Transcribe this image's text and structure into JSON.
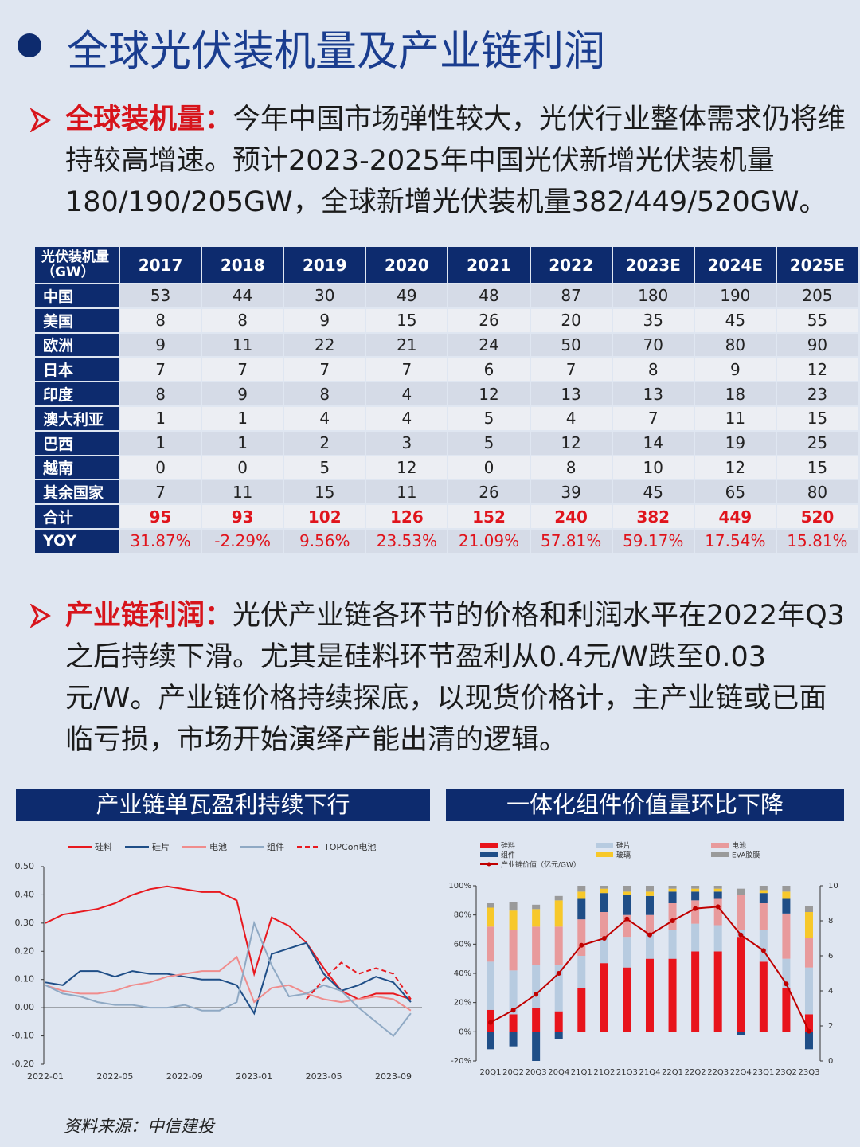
{
  "title": "全球光伏装机量及产业链利润",
  "sections": [
    {
      "label": "全球装机量：",
      "text": "今年中国市场弹性较大，光伏行业整体需求仍将维持较高增速。预计2023-2025年中国光伏新增光伏装机量180/190/205GW，全球新增光伏装机量382/449/520GW。"
    },
    {
      "label": "产业链利润：",
      "text": "光伏产业链各环节的价格和利润水平在2022年Q3之后持续下滑。尤其是硅料环节盈利从0.4元/W跌至0.03元/W。产业链价格持续探底，以现货价格计，主产业链或已面临亏损，市场开始演绎产能出清的逻辑。"
    }
  ],
  "table": {
    "header": [
      "光伏装机量（GW）",
      "2017",
      "2018",
      "2019",
      "2020",
      "2021",
      "2022",
      "2023E",
      "2024E",
      "2025E"
    ],
    "rows": [
      [
        "中国",
        53,
        44,
        30,
        49,
        48,
        87,
        180,
        190,
        205
      ],
      [
        "美国",
        8,
        8,
        9,
        15,
        26,
        20,
        35,
        45,
        55
      ],
      [
        "欧洲",
        9,
        11,
        22,
        21,
        24,
        50,
        70,
        80,
        90
      ],
      [
        "日本",
        7,
        7,
        7,
        7,
        6,
        7,
        8,
        9,
        12
      ],
      [
        "印度",
        8,
        9,
        8,
        4,
        12,
        13,
        13,
        18,
        23
      ],
      [
        "澳大利亚",
        1,
        1,
        4,
        4,
        5,
        4,
        7,
        11,
        15
      ],
      [
        "巴西",
        1,
        1,
        2,
        3,
        5,
        12,
        14,
        19,
        25
      ],
      [
        "越南",
        0,
        0,
        5,
        12,
        0,
        8,
        10,
        12,
        15
      ],
      [
        "其余国家",
        7,
        11,
        15,
        11,
        26,
        39,
        45,
        65,
        80
      ],
      [
        "合计",
        95,
        93,
        102,
        126,
        152,
        240,
        382,
        449,
        520
      ],
      [
        "YOY",
        "31.87%",
        "-2.29%",
        "9.56%",
        "23.53%",
        "21.09%",
        "57.81%",
        "59.17%",
        "17.54%",
        "15.81%"
      ]
    ]
  },
  "chart_data": [
    {
      "type": "line",
      "title": "产业链单瓦盈利持续下行",
      "x": [
        "2022-01",
        null,
        null,
        null,
        "2022-05",
        null,
        null,
        null,
        "2022-09",
        null,
        null,
        null,
        "2023-01",
        null,
        null,
        null,
        "2023-05",
        null,
        null,
        null,
        "2023-09",
        null
      ],
      "series": [
        {
          "name": "硅料",
          "color": "#e8191f",
          "values": [
            0.3,
            0.33,
            0.34,
            0.35,
            0.37,
            0.4,
            0.42,
            0.43,
            0.42,
            0.41,
            0.41,
            0.38,
            0.12,
            0.32,
            0.29,
            0.23,
            0.14,
            0.06,
            0.03,
            0.05,
            0.05,
            0.03
          ]
        },
        {
          "name": "硅片",
          "color": "#1f4e87",
          "values": [
            0.09,
            0.08,
            0.13,
            0.13,
            0.11,
            0.13,
            0.12,
            0.12,
            0.11,
            0.1,
            0.1,
            0.08,
            -0.02,
            0.19,
            0.21,
            0.23,
            0.12,
            0.06,
            0.08,
            0.11,
            0.09,
            0.02
          ]
        },
        {
          "name": "电池",
          "color": "#f08c8c",
          "values": [
            0.08,
            0.06,
            0.05,
            0.05,
            0.06,
            0.08,
            0.09,
            0.11,
            0.12,
            0.13,
            0.13,
            0.18,
            0.02,
            0.07,
            0.08,
            0.05,
            0.03,
            0.02,
            0.03,
            0.04,
            0.03,
            -0.01
          ]
        },
        {
          "name": "组件",
          "color": "#8fa9c4",
          "values": [
            0.08,
            0.05,
            0.04,
            0.02,
            0.01,
            0.01,
            0.0,
            0.0,
            0.01,
            -0.01,
            -0.01,
            0.02,
            0.3,
            0.15,
            0.04,
            0.05,
            0.08,
            0.06,
            0.0,
            -0.05,
            -0.1,
            -0.02
          ]
        },
        {
          "name": "TOPCon电池",
          "color": "#e8191f",
          "dashed": true,
          "values": [
            null,
            null,
            null,
            null,
            null,
            null,
            null,
            null,
            null,
            null,
            null,
            null,
            null,
            null,
            null,
            0.03,
            0.1,
            0.16,
            0.12,
            0.14,
            0.12,
            0.03
          ]
        }
      ],
      "ylim": [
        -0.2,
        0.5
      ],
      "yticks": [
        {
          "value": -0.2,
          "label": "-0.20"
        },
        {
          "value": -0.1,
          "label": "-0.10"
        },
        {
          "value": 0,
          "label": "0.00"
        },
        {
          "value": 0.1,
          "label": "0.10"
        },
        {
          "value": 0.2,
          "label": "0.20"
        },
        {
          "value": 0.3,
          "label": "0.30"
        },
        {
          "value": 0.4,
          "label": "0.40"
        },
        {
          "value": 0.5,
          "label": "0.50"
        }
      ],
      "legend": "top"
    },
    {
      "type": "bar",
      "stacked": true,
      "title": "一体化组件价值量环比下降",
      "categories": [
        "20Q1",
        "20Q2",
        "20Q3",
        "20Q4",
        "21Q1",
        "21Q2",
        "21Q3",
        "21Q4",
        "22Q1",
        "22Q2",
        "22Q3",
        "22Q4",
        "23Q1",
        "23Q2",
        "23Q3"
      ],
      "series": [
        {
          "name": "硅料",
          "color": "#e8141c",
          "values": [
            15,
            12,
            16,
            14,
            30,
            47,
            44,
            50,
            50,
            55,
            55,
            65,
            48,
            30,
            12
          ]
        },
        {
          "name": "硅片",
          "color": "#b7cbe0",
          "values": [
            33,
            30,
            30,
            32,
            22,
            18,
            21,
            17,
            20,
            19,
            18,
            5,
            22,
            20,
            32
          ]
        },
        {
          "name": "电池",
          "color": "#e89a9c",
          "values": [
            24,
            28,
            26,
            26,
            25,
            17,
            15,
            13,
            18,
            16,
            18,
            24,
            18,
            31,
            20
          ]
        },
        {
          "name": "组件",
          "color": "#1f4e87",
          "values": [
            -12,
            -10,
            -20,
            -5,
            14,
            13,
            14,
            13,
            8,
            6,
            5,
            -2,
            7,
            10,
            -12
          ]
        },
        {
          "name": "玻璃",
          "color": "#f7c82a",
          "values": [
            13,
            13,
            12,
            18,
            5,
            3,
            2,
            3,
            2,
            2,
            2,
            0,
            2,
            5,
            18
          ]
        },
        {
          "name": "EVA胶膜",
          "color": "#9a9a9a",
          "values": [
            3,
            6,
            3,
            3,
            4,
            2,
            4,
            4,
            2,
            2,
            2,
            4,
            3,
            4,
            4
          ]
        },
        {
          "name": "产业链价值（亿元/GW）",
          "color": "#c00000",
          "type": "line",
          "axis": "y2",
          "values": [
            2.2,
            2.9,
            3.8,
            5.0,
            6.6,
            7.0,
            8.1,
            7.2,
            8.0,
            8.7,
            8.8,
            7.2,
            6.3,
            4.4,
            1.7
          ]
        }
      ],
      "ylim": [
        -20,
        100
      ],
      "yticks": [
        {
          "value": -20,
          "label": "-20%"
        },
        {
          "value": 0,
          "label": "0%"
        },
        {
          "value": 20,
          "label": "20%"
        },
        {
          "value": 40,
          "label": "40%"
        },
        {
          "value": 60,
          "label": "60%"
        },
        {
          "value": 80,
          "label": "80%"
        },
        {
          "value": 100,
          "label": "100%"
        }
      ],
      "y2lim": [
        0,
        10
      ],
      "y2ticks": [
        0,
        2,
        4,
        6,
        8,
        10
      ],
      "legend": "top"
    }
  ],
  "source": "资料来源：中信建投"
}
